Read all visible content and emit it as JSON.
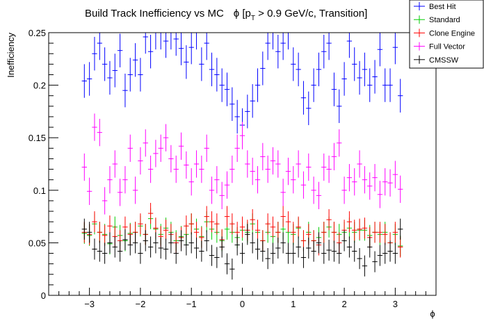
{
  "chart_data": {
    "type": "scatter",
    "title_main": "Build Track Inefficiency vs MC",
    "title_phi": "ϕ [p",
    "title_sub": "T",
    "title_rest": " > 0.9 GeV/c, Transition]",
    "xlabel": "ϕ",
    "ylabel": "Inefficiency",
    "xlim": [
      -3.8,
      3.8
    ],
    "ylim": [
      0,
      0.25
    ],
    "x_ticks": [
      {
        "value": -3,
        "label": "−3"
      },
      {
        "value": -2,
        "label": "−2"
      },
      {
        "value": -1,
        "label": "−1"
      },
      {
        "value": 0,
        "label": "0"
      },
      {
        "value": 1,
        "label": "1"
      },
      {
        "value": 2,
        "label": "2"
      },
      {
        "value": 3,
        "label": "3"
      }
    ],
    "y_ticks": [
      {
        "value": 0,
        "label": "0"
      },
      {
        "value": 0.05,
        "label": "0.05"
      },
      {
        "value": 0.1,
        "label": "0.1"
      },
      {
        "value": 0.15,
        "label": "0.15"
      },
      {
        "value": 0.2,
        "label": "0.2"
      },
      {
        "value": 0.25,
        "label": "0.25"
      }
    ],
    "x": [
      -3.1,
      -3.0,
      -2.9,
      -2.8,
      -2.7,
      -2.6,
      -2.5,
      -2.4,
      -2.3,
      -2.2,
      -2.1,
      -2.0,
      -1.9,
      -1.8,
      -1.7,
      -1.6,
      -1.5,
      -1.4,
      -1.3,
      -1.2,
      -1.1,
      -1.0,
      -0.9,
      -0.8,
      -0.7,
      -0.6,
      -0.5,
      -0.4,
      -0.3,
      -0.2,
      -0.1,
      0.0,
      0.1,
      0.2,
      0.3,
      0.4,
      0.5,
      0.6,
      0.7,
      0.8,
      0.9,
      1.0,
      1.1,
      1.2,
      1.3,
      1.4,
      1.5,
      1.6,
      1.7,
      1.8,
      1.9,
      2.0,
      2.1,
      2.2,
      2.3,
      2.4,
      2.5,
      2.6,
      2.7,
      2.8,
      2.9,
      3.0,
      3.1
    ],
    "x_half_width": 0.05,
    "grid": false,
    "legend_position": "top-right",
    "series": [
      {
        "name": "Best Hit",
        "color": "#0000ff",
        "values": [
          0.204,
          0.206,
          0.23,
          0.24,
          0.22,
          0.207,
          0.214,
          0.233,
          0.195,
          0.21,
          0.224,
          0.21,
          0.246,
          0.232,
          0.25,
          0.25,
          0.242,
          0.25,
          0.244,
          0.235,
          0.222,
          0.236,
          0.25,
          0.22,
          0.24,
          0.215,
          0.21,
          0.2,
          0.196,
          0.182,
          0.17,
          0.162,
          0.175,
          0.185,
          0.2,
          0.216,
          0.24,
          0.25,
          0.232,
          0.24,
          0.25,
          0.22,
          0.215,
          0.188,
          0.178,
          0.2,
          0.215,
          0.232,
          0.24,
          0.196,
          0.18,
          0.206,
          0.242,
          0.22,
          0.207,
          0.215,
          0.2,
          0.208,
          0.234,
          0.2,
          0.2,
          0.236,
          0.19
        ],
        "errors": [
          0.016,
          0.016,
          0.016,
          0.016,
          0.016,
          0.016,
          0.016,
          0.016,
          0.016,
          0.016,
          0.016,
          0.016,
          0.016,
          0.016,
          0.016,
          0.016,
          0.016,
          0.016,
          0.016,
          0.016,
          0.016,
          0.016,
          0.016,
          0.016,
          0.016,
          0.016,
          0.016,
          0.016,
          0.016,
          0.016,
          0.016,
          0.016,
          0.016,
          0.016,
          0.016,
          0.016,
          0.016,
          0.016,
          0.016,
          0.016,
          0.016,
          0.016,
          0.016,
          0.016,
          0.016,
          0.016,
          0.016,
          0.016,
          0.016,
          0.016,
          0.016,
          0.016,
          0.016,
          0.016,
          0.016,
          0.016,
          0.016,
          0.016,
          0.016,
          0.016,
          0.016,
          0.016,
          0.016
        ]
      },
      {
        "name": "Standard",
        "color": "#00cc00",
        "values": [
          0.059,
          0.057,
          0.068,
          0.06,
          0.058,
          0.049,
          0.065,
          0.057,
          0.052,
          0.059,
          0.06,
          0.066,
          0.058,
          0.073,
          0.063,
          0.058,
          0.064,
          0.06,
          0.052,
          0.056,
          0.058,
          0.068,
          0.063,
          0.056,
          0.07,
          0.063,
          0.06,
          0.052,
          0.063,
          0.06,
          0.055,
          0.062,
          0.06,
          0.068,
          0.06,
          0.052,
          0.06,
          0.056,
          0.06,
          0.063,
          0.06,
          0.058,
          0.064,
          0.052,
          0.06,
          0.052,
          0.055,
          0.06,
          0.065,
          0.06,
          0.058,
          0.06,
          0.064,
          0.06,
          0.062,
          0.062,
          0.057,
          0.06,
          0.058,
          0.06,
          0.05,
          0.058,
          0.047
        ],
        "errors": [
          0.01,
          0.01,
          0.01,
          0.01,
          0.01,
          0.01,
          0.01,
          0.01,
          0.01,
          0.01,
          0.01,
          0.01,
          0.01,
          0.01,
          0.01,
          0.01,
          0.01,
          0.01,
          0.01,
          0.01,
          0.01,
          0.01,
          0.01,
          0.01,
          0.01,
          0.01,
          0.01,
          0.01,
          0.01,
          0.01,
          0.01,
          0.01,
          0.01,
          0.01,
          0.01,
          0.01,
          0.01,
          0.01,
          0.01,
          0.01,
          0.01,
          0.01,
          0.01,
          0.01,
          0.01,
          0.01,
          0.01,
          0.01,
          0.01,
          0.01,
          0.01,
          0.01,
          0.01,
          0.01,
          0.01,
          0.01,
          0.01,
          0.01,
          0.01,
          0.01,
          0.01,
          0.01,
          0.01
        ]
      },
      {
        "name": "Clone Engine",
        "color": "#ff0000",
        "values": [
          0.06,
          0.058,
          0.07,
          0.06,
          0.057,
          0.066,
          0.056,
          0.052,
          0.065,
          0.058,
          0.06,
          0.068,
          0.058,
          0.078,
          0.064,
          0.056,
          0.062,
          0.058,
          0.05,
          0.055,
          0.066,
          0.068,
          0.06,
          0.055,
          0.075,
          0.07,
          0.068,
          0.053,
          0.075,
          0.068,
          0.06,
          0.065,
          0.062,
          0.072,
          0.062,
          0.052,
          0.068,
          0.065,
          0.06,
          0.075,
          0.07,
          0.06,
          0.065,
          0.052,
          0.058,
          0.052,
          0.048,
          0.06,
          0.072,
          0.06,
          0.05,
          0.062,
          0.07,
          0.062,
          0.063,
          0.064,
          0.055,
          0.06,
          0.06,
          0.058,
          0.05,
          0.06,
          0.046
        ],
        "errors": [
          0.01,
          0.01,
          0.01,
          0.01,
          0.01,
          0.01,
          0.01,
          0.01,
          0.01,
          0.01,
          0.01,
          0.01,
          0.01,
          0.01,
          0.01,
          0.01,
          0.01,
          0.01,
          0.01,
          0.01,
          0.01,
          0.01,
          0.01,
          0.01,
          0.01,
          0.01,
          0.01,
          0.01,
          0.01,
          0.01,
          0.01,
          0.01,
          0.01,
          0.01,
          0.01,
          0.01,
          0.01,
          0.01,
          0.01,
          0.01,
          0.01,
          0.01,
          0.01,
          0.01,
          0.01,
          0.01,
          0.01,
          0.01,
          0.01,
          0.01,
          0.01,
          0.01,
          0.01,
          0.01,
          0.01,
          0.01,
          0.01,
          0.01,
          0.01,
          0.01,
          0.01,
          0.01,
          0.01
        ]
      },
      {
        "name": "Full Vector",
        "color": "#ff00ff",
        "values": [
          0.122,
          0.099,
          0.16,
          0.155,
          0.09,
          0.11,
          0.125,
          0.098,
          0.11,
          0.14,
          0.1,
          0.128,
          0.145,
          0.12,
          0.135,
          0.14,
          0.15,
          0.13,
          0.12,
          0.142,
          0.124,
          0.108,
          0.125,
          0.12,
          0.14,
          0.1,
          0.11,
          0.095,
          0.105,
          0.12,
          0.14,
          0.152,
          0.125,
          0.118,
          0.11,
          0.132,
          0.12,
          0.128,
          0.125,
          0.098,
          0.118,
          0.11,
          0.125,
          0.105,
          0.122,
          0.1,
          0.095,
          0.122,
          0.12,
          0.132,
          0.145,
          0.1,
          0.112,
          0.108,
          0.125,
          0.11,
          0.104,
          0.112,
          0.096,
          0.108,
          0.107,
          0.115,
          0.101
        ],
        "errors": [
          0.013,
          0.013,
          0.013,
          0.013,
          0.013,
          0.013,
          0.013,
          0.013,
          0.013,
          0.013,
          0.013,
          0.013,
          0.013,
          0.013,
          0.013,
          0.013,
          0.013,
          0.013,
          0.013,
          0.013,
          0.013,
          0.013,
          0.013,
          0.013,
          0.013,
          0.013,
          0.013,
          0.013,
          0.013,
          0.013,
          0.013,
          0.013,
          0.013,
          0.013,
          0.013,
          0.013,
          0.013,
          0.013,
          0.013,
          0.013,
          0.013,
          0.013,
          0.013,
          0.013,
          0.013,
          0.013,
          0.013,
          0.013,
          0.013,
          0.013,
          0.013,
          0.013,
          0.013,
          0.013,
          0.013,
          0.013,
          0.013,
          0.013,
          0.013,
          0.013,
          0.013,
          0.013,
          0.013
        ]
      },
      {
        "name": "CMSSW",
        "color": "#000000",
        "values": [
          0.063,
          0.06,
          0.044,
          0.042,
          0.04,
          0.05,
          0.046,
          0.042,
          0.053,
          0.048,
          0.05,
          0.04,
          0.052,
          0.046,
          0.05,
          0.045,
          0.044,
          0.05,
          0.04,
          0.052,
          0.048,
          0.05,
          0.045,
          0.042,
          0.052,
          0.038,
          0.036,
          0.046,
          0.03,
          0.025,
          0.048,
          0.04,
          0.058,
          0.05,
          0.044,
          0.042,
          0.035,
          0.04,
          0.045,
          0.05,
          0.04,
          0.04,
          0.046,
          0.036,
          0.045,
          0.042,
          0.05,
          0.04,
          0.043,
          0.042,
          0.04,
          0.052,
          0.046,
          0.042,
          0.035,
          0.028,
          0.046,
          0.032,
          0.038,
          0.04,
          0.042,
          0.04,
          0.063
        ],
        "errors": [
          0.01,
          0.01,
          0.01,
          0.01,
          0.01,
          0.01,
          0.01,
          0.01,
          0.01,
          0.01,
          0.01,
          0.01,
          0.01,
          0.01,
          0.01,
          0.01,
          0.01,
          0.01,
          0.01,
          0.01,
          0.01,
          0.01,
          0.01,
          0.01,
          0.01,
          0.01,
          0.01,
          0.01,
          0.01,
          0.01,
          0.01,
          0.01,
          0.01,
          0.01,
          0.01,
          0.01,
          0.01,
          0.01,
          0.01,
          0.01,
          0.01,
          0.01,
          0.01,
          0.01,
          0.01,
          0.01,
          0.01,
          0.01,
          0.01,
          0.01,
          0.01,
          0.01,
          0.01,
          0.01,
          0.01,
          0.01,
          0.01,
          0.01,
          0.01,
          0.01,
          0.01,
          0.01,
          0.01
        ]
      }
    ]
  }
}
